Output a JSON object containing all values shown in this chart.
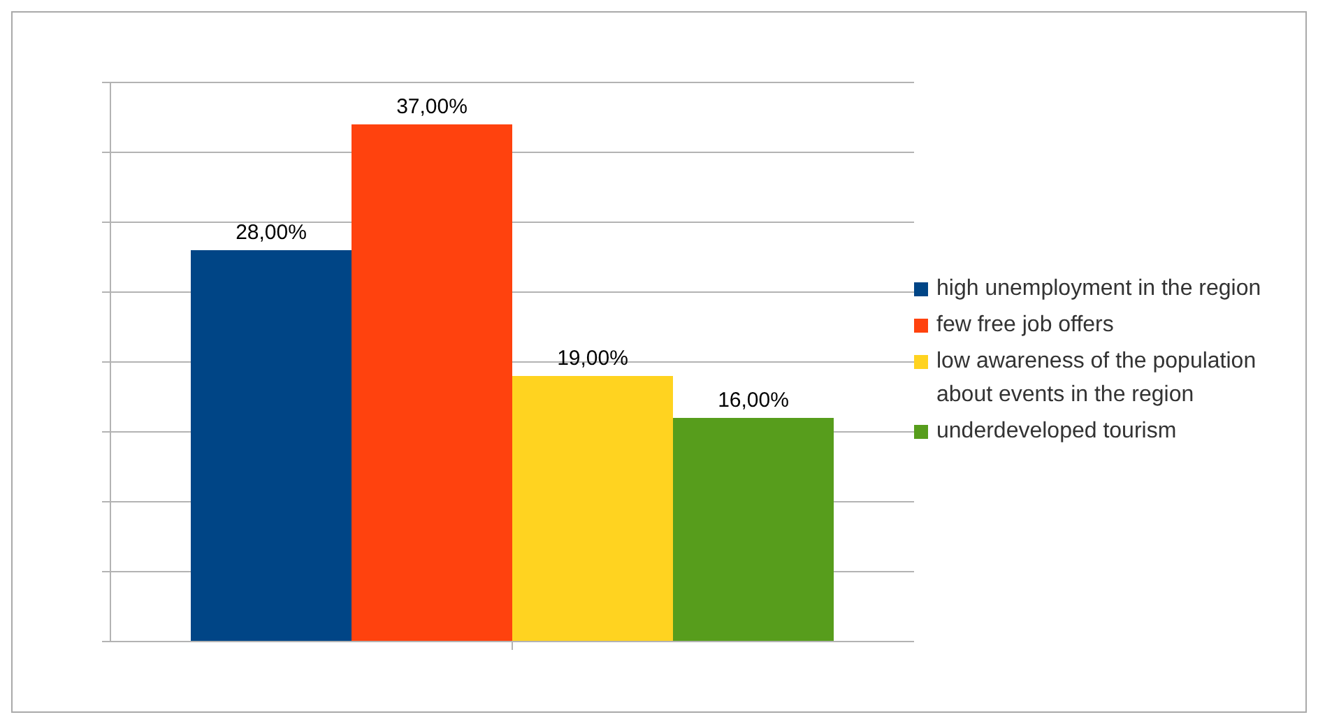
{
  "chart_data": {
    "type": "bar",
    "categories": [
      null
    ],
    "series": [
      {
        "name": "high unemployment in the region",
        "color": "#004586",
        "values": [
          28
        ],
        "value_labels": [
          "28,00%"
        ]
      },
      {
        "name": "few free job offers",
        "color": "#ff420e",
        "values": [
          37
        ],
        "value_labels": [
          "37,00%"
        ]
      },
      {
        "name": "low awareness of the population about events in the region",
        "color": "#ffd320",
        "values": [
          19
        ],
        "value_labels": [
          "19,00%"
        ]
      },
      {
        "name": "underdeveloped tourism",
        "color": "#579d1c",
        "values": [
          16
        ],
        "value_labels": [
          "16,00%"
        ]
      }
    ],
    "tick_labels": false,
    "grid": "y",
    "legend": "right"
  }
}
